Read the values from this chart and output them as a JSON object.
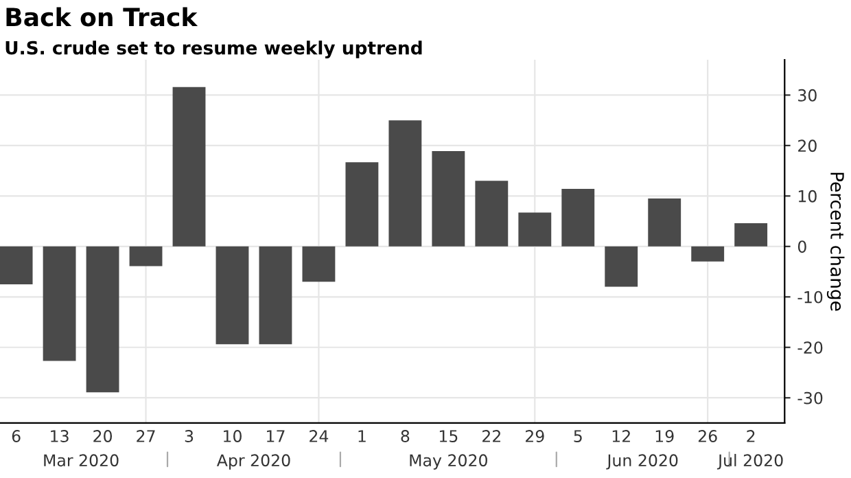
{
  "chart_data": {
    "type": "bar",
    "title": "Back on Track",
    "subtitle": "U.S. crude set to resume weekly uptrend",
    "ylabel": "Percent change",
    "categories": [
      "6",
      "13",
      "20",
      "27",
      "3",
      "10",
      "17",
      "24",
      "1",
      "8",
      "15",
      "22",
      "29",
      "5",
      "12",
      "19",
      "26",
      "2"
    ],
    "values": [
      -7.5,
      -22.7,
      -28.9,
      -3.9,
      31.6,
      -19.4,
      -19.4,
      -7.0,
      16.7,
      25.0,
      18.9,
      13.0,
      6.7,
      11.4,
      -8.0,
      9.5,
      -3.0,
      4.6
    ],
    "color": "#4a4a4a",
    "annotations": [
      "Mar 2020",
      "Apr 2020",
      "May 2020",
      "Jun 2020",
      "Jul 2020"
    ],
    "ylim": [
      -35,
      37
    ],
    "yticks": [
      -30,
      -20,
      -10,
      0,
      10,
      20,
      30
    ],
    "grid": true,
    "legend": false
  }
}
